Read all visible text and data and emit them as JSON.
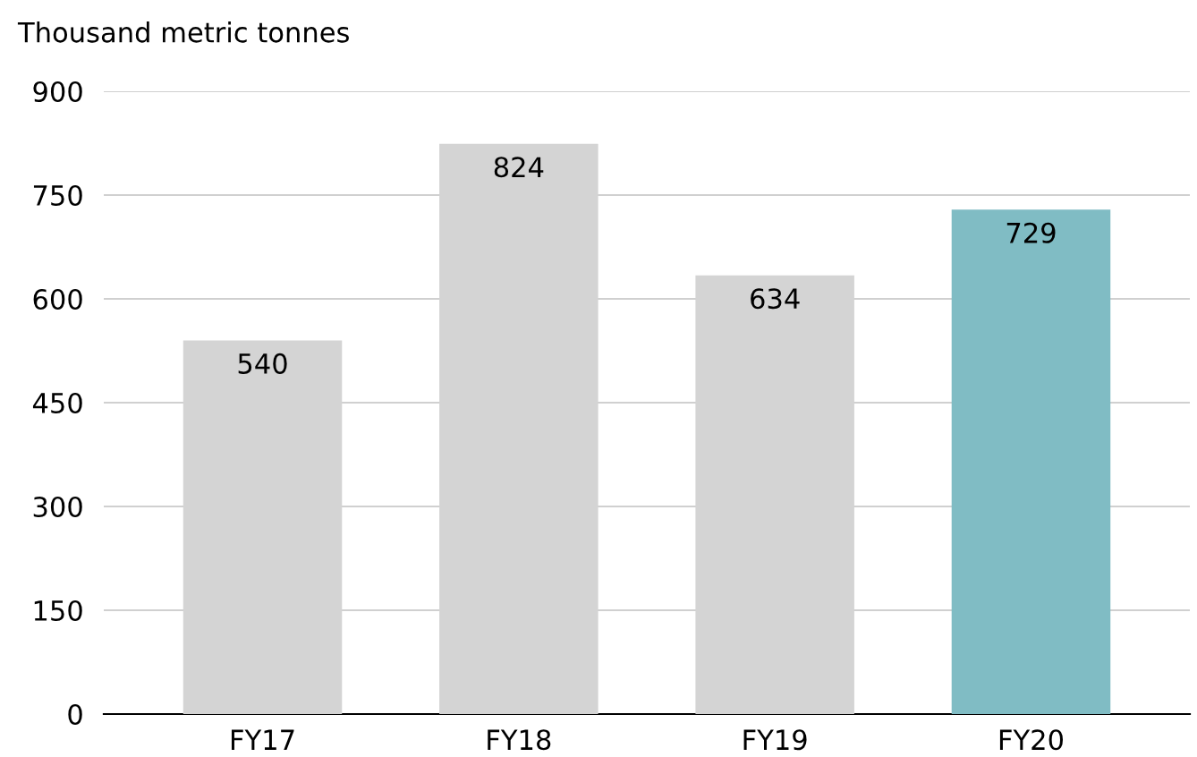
{
  "chart_data": {
    "type": "bar",
    "ylabel": "Thousand metric tonnes",
    "categories": [
      "FY17",
      "FY18",
      "FY19",
      "FY20"
    ],
    "values": [
      540,
      824,
      634,
      729
    ],
    "colors": [
      "#d4d4d4",
      "#d4d4d4",
      "#d4d4d4",
      "#80bcc4"
    ],
    "ylim": [
      0,
      900
    ],
    "yticks": [
      0,
      150,
      300,
      450,
      600,
      750,
      900
    ],
    "grid": "y",
    "data_labels": true
  }
}
